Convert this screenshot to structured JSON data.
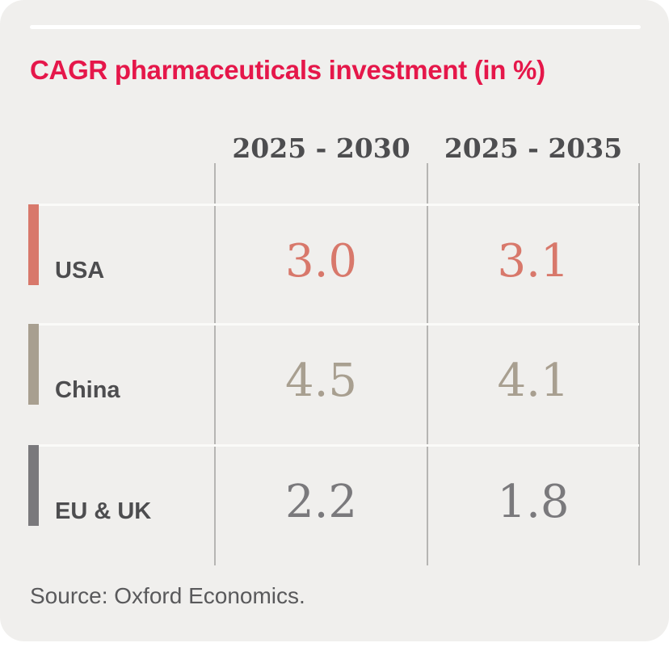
{
  "title": "CAGR pharmaceuticals investment (in %)",
  "columns": [
    "2025 - 2030",
    "2025 - 2035"
  ],
  "rows": [
    {
      "label": "USA",
      "color": "#D8786B",
      "values": [
        "3.0",
        "3.1"
      ]
    },
    {
      "label": "China",
      "color": "#A89F90",
      "values": [
        "4.5",
        "4.1"
      ]
    },
    {
      "label": "EU & UK",
      "color": "#7A797C",
      "values": [
        "2.2",
        "1.8"
      ]
    }
  ],
  "source": "Source: Oxford Economics.",
  "colors": {
    "card_bg": "#F0EFED",
    "title_text": "#E5174A",
    "header_text": "#4D4D4F",
    "label_text": "#4D4D4F",
    "grid_vline": "#B6B5B3",
    "grid_hline": "#FAFAF8",
    "top_rule": "#FFFFFF",
    "source_text": "#59595B"
  },
  "chart_data": {
    "type": "table",
    "title": "CAGR pharmaceuticals investment (in %)",
    "columns": [
      "2025 - 2030",
      "2025 - 2035"
    ],
    "categories": [
      "USA",
      "China",
      "EU & UK"
    ],
    "series": [
      {
        "name": "2025 - 2030",
        "values": [
          3.0,
          4.5,
          2.2
        ]
      },
      {
        "name": "2025 - 2035",
        "values": [
          3.1,
          4.1,
          1.8
        ]
      }
    ],
    "unit": "percent CAGR",
    "legend_position": "none",
    "grid": "column dividers and row separators",
    "source": "Oxford Economics"
  }
}
